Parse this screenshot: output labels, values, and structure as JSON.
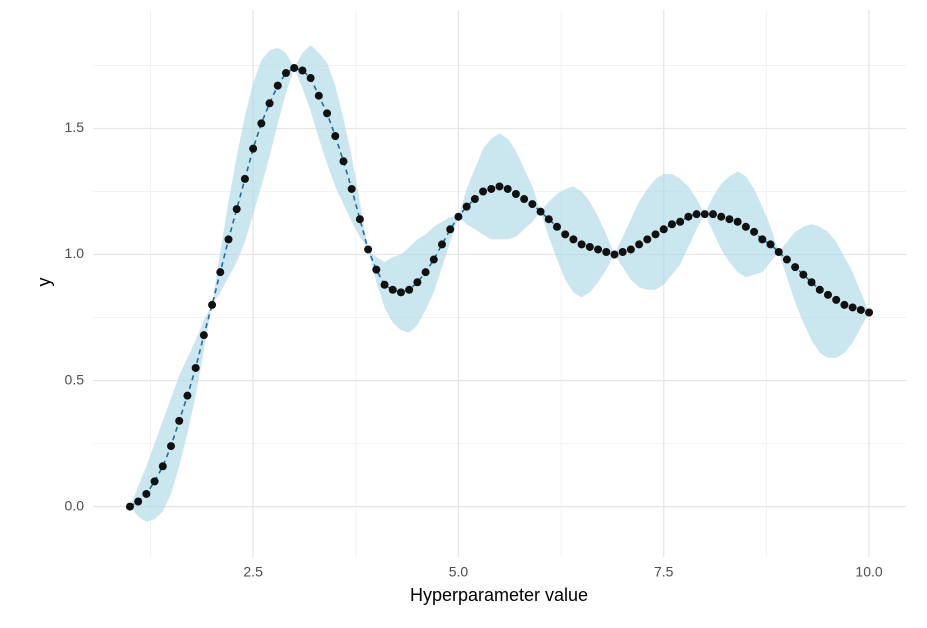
{
  "chart_data": {
    "type": "line",
    "x_label": "Hyperparameter value",
    "y_label": "y",
    "x": [
      1,
      1.1,
      1.2,
      1.3,
      1.4,
      1.5,
      1.6,
      1.7,
      1.8,
      1.9,
      2,
      2.1,
      2.2,
      2.3,
      2.4,
      2.5,
      2.6,
      2.7,
      2.8,
      2.9,
      3,
      3.1,
      3.2,
      3.3,
      3.4,
      3.5,
      3.6,
      3.7,
      3.8,
      3.9,
      4,
      4.1,
      4.2,
      4.3,
      4.4,
      4.5,
      4.6,
      4.7,
      4.8,
      4.9,
      5,
      5.1,
      5.2,
      5.3,
      5.4,
      5.5,
      5.6,
      5.7,
      5.8,
      5.9,
      6,
      6.1,
      6.2,
      6.3,
      6.4,
      6.5,
      6.6,
      6.7,
      6.8,
      6.9,
      7,
      7.1,
      7.2,
      7.3,
      7.4,
      7.5,
      7.6,
      7.7,
      7.8,
      7.9,
      8,
      8.1,
      8.2,
      8.3,
      8.4,
      8.5,
      8.6,
      8.7,
      8.8,
      8.9,
      9,
      9.1,
      9.2,
      9.3,
      9.4,
      9.5,
      9.6,
      9.7,
      9.8,
      9.9,
      10
    ],
    "values": [
      0,
      0.02,
      0.05,
      0.1,
      0.16,
      0.24,
      0.34,
      0.44,
      0.55,
      0.68,
      0.8,
      0.93,
      1.06,
      1.18,
      1.3,
      1.42,
      1.52,
      1.6,
      1.67,
      1.72,
      1.74,
      1.73,
      1.7,
      1.63,
      1.56,
      1.47,
      1.37,
      1.26,
      1.14,
      1.02,
      0.94,
      0.88,
      0.86,
      0.85,
      0.86,
      0.89,
      0.93,
      0.98,
      1.04,
      1.1,
      1.15,
      1.19,
      1.22,
      1.25,
      1.26,
      1.27,
      1.26,
      1.24,
      1.22,
      1.2,
      1.17,
      1.14,
      1.11,
      1.08,
      1.06,
      1.04,
      1.03,
      1.02,
      1.01,
      1,
      1.01,
      1.02,
      1.04,
      1.06,
      1.08,
      1.1,
      1.12,
      1.13,
      1.15,
      1.16,
      1.16,
      1.16,
      1.15,
      1.14,
      1.13,
      1.11,
      1.09,
      1.06,
      1.04,
      1.01,
      0.98,
      0.95,
      0.92,
      0.89,
      0.86,
      0.84,
      0.82,
      0.8,
      0.79,
      0.78,
      0.77
    ],
    "lower": [
      0,
      -0.04,
      -0.06,
      -0.05,
      -0.02,
      0.05,
      0.16,
      0.29,
      0.44,
      0.62,
      0.8,
      0.85,
      0.91,
      0.97,
      1.05,
      1.16,
      1.27,
      1.39,
      1.52,
      1.64,
      1.74,
      1.66,
      1.57,
      1.46,
      1.36,
      1.27,
      1.2,
      1.13,
      1.07,
      1.02,
      0.89,
      0.79,
      0.73,
      0.7,
      0.69,
      0.72,
      0.78,
      0.85,
      0.95,
      1.05,
      1.15,
      1.12,
      1.1,
      1.08,
      1.06,
      1.06,
      1.06,
      1.07,
      1.1,
      1.13,
      1.17,
      1.07,
      0.98,
      0.9,
      0.85,
      0.83,
      0.85,
      0.89,
      0.94,
      1,
      0.95,
      0.9,
      0.87,
      0.86,
      0.86,
      0.88,
      0.92,
      0.96,
      1.03,
      1.1,
      1.16,
      1.09,
      1.02,
      0.97,
      0.93,
      0.91,
      0.92,
      0.93,
      0.97,
      1.01,
      0.91,
      0.81,
      0.73,
      0.66,
      0.61,
      0.59,
      0.59,
      0.61,
      0.65,
      0.71,
      0.77
    ],
    "upper": [
      0,
      0.08,
      0.16,
      0.25,
      0.34,
      0.43,
      0.52,
      0.59,
      0.66,
      0.74,
      0.8,
      1.01,
      1.21,
      1.39,
      1.55,
      1.68,
      1.77,
      1.81,
      1.82,
      1.8,
      1.74,
      1.8,
      1.83,
      1.8,
      1.76,
      1.67,
      1.54,
      1.39,
      1.21,
      1.02,
      0.99,
      0.97,
      0.99,
      1,
      1.03,
      1.06,
      1.08,
      1.11,
      1.13,
      1.15,
      1.15,
      1.26,
      1.34,
      1.42,
      1.46,
      1.48,
      1.46,
      1.41,
      1.34,
      1.27,
      1.17,
      1.21,
      1.24,
      1.26,
      1.27,
      1.25,
      1.21,
      1.15,
      1.08,
      1,
      1.07,
      1.14,
      1.21,
      1.26,
      1.3,
      1.32,
      1.32,
      1.3,
      1.27,
      1.22,
      1.16,
      1.23,
      1.28,
      1.31,
      1.33,
      1.31,
      1.26,
      1.19,
      1.11,
      1.01,
      1.05,
      1.09,
      1.11,
      1.12,
      1.11,
      1.09,
      1.05,
      0.99,
      0.93,
      0.85,
      0.77
    ],
    "ribbon_color": "#add8e6",
    "line_color": "#1f6f98",
    "point_color": "#111111",
    "xlim": [
      0.55,
      10.45
    ],
    "ylim": [
      -0.2,
      1.97
    ],
    "xticks": [
      2.5,
      {
        "value": 5,
        "label": "5.0"
      },
      7.5,
      {
        "value": 10,
        "label": "10.0"
      }
    ],
    "yticks": [
      {
        "value": 0,
        "label": "0.0"
      },
      0.5,
      {
        "value": 1,
        "label": "1.0"
      },
      1.5
    ],
    "xminor": [
      1.25,
      3.75,
      6.25,
      8.75
    ],
    "yminor": [
      0.25,
      0.75,
      1.25,
      1.75
    ],
    "grid": true
  }
}
